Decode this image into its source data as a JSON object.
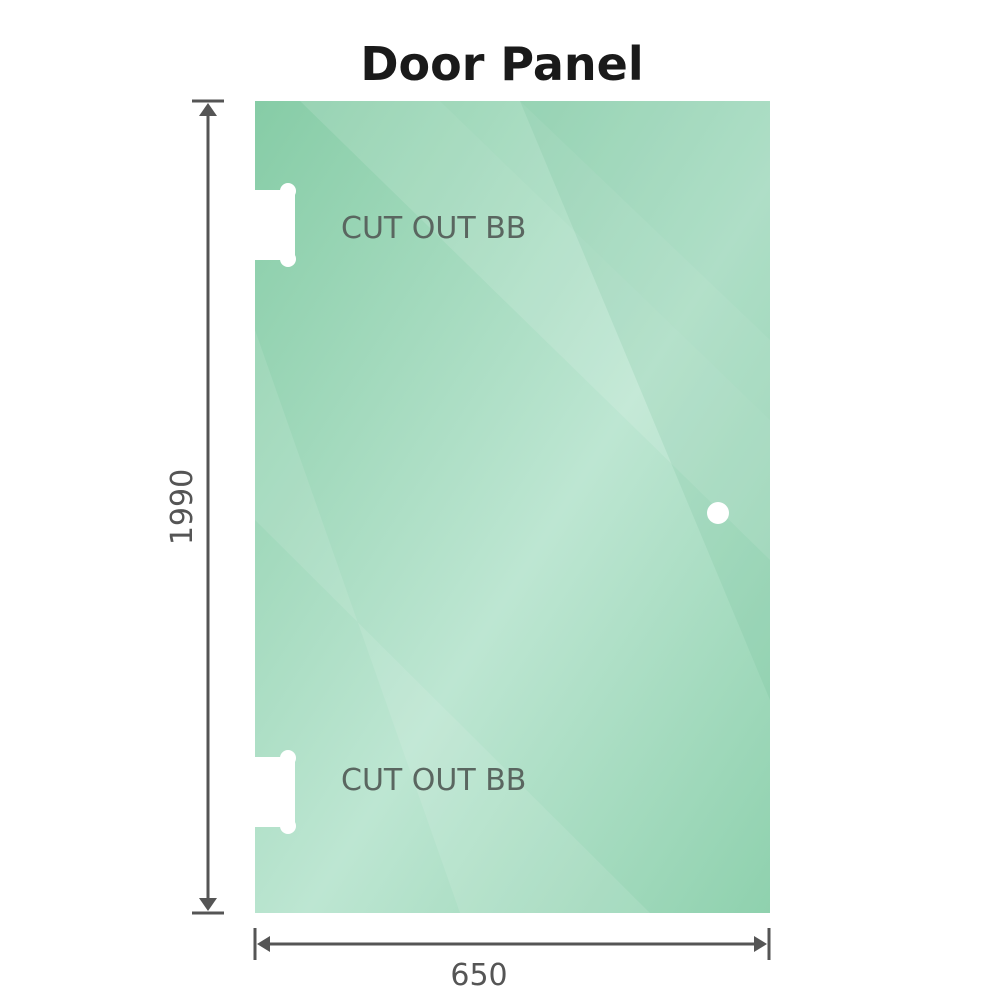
{
  "title": "Door Panel",
  "cutouts": [
    {
      "label": "CUT OUT BB"
    },
    {
      "label": "CUT OUT BB"
    }
  ],
  "dimensions": {
    "height": "1990",
    "width": "650"
  },
  "colors": {
    "glass": "#8fd0ae",
    "glass_light": "#bfe6d3",
    "dimension_line": "#555555"
  }
}
